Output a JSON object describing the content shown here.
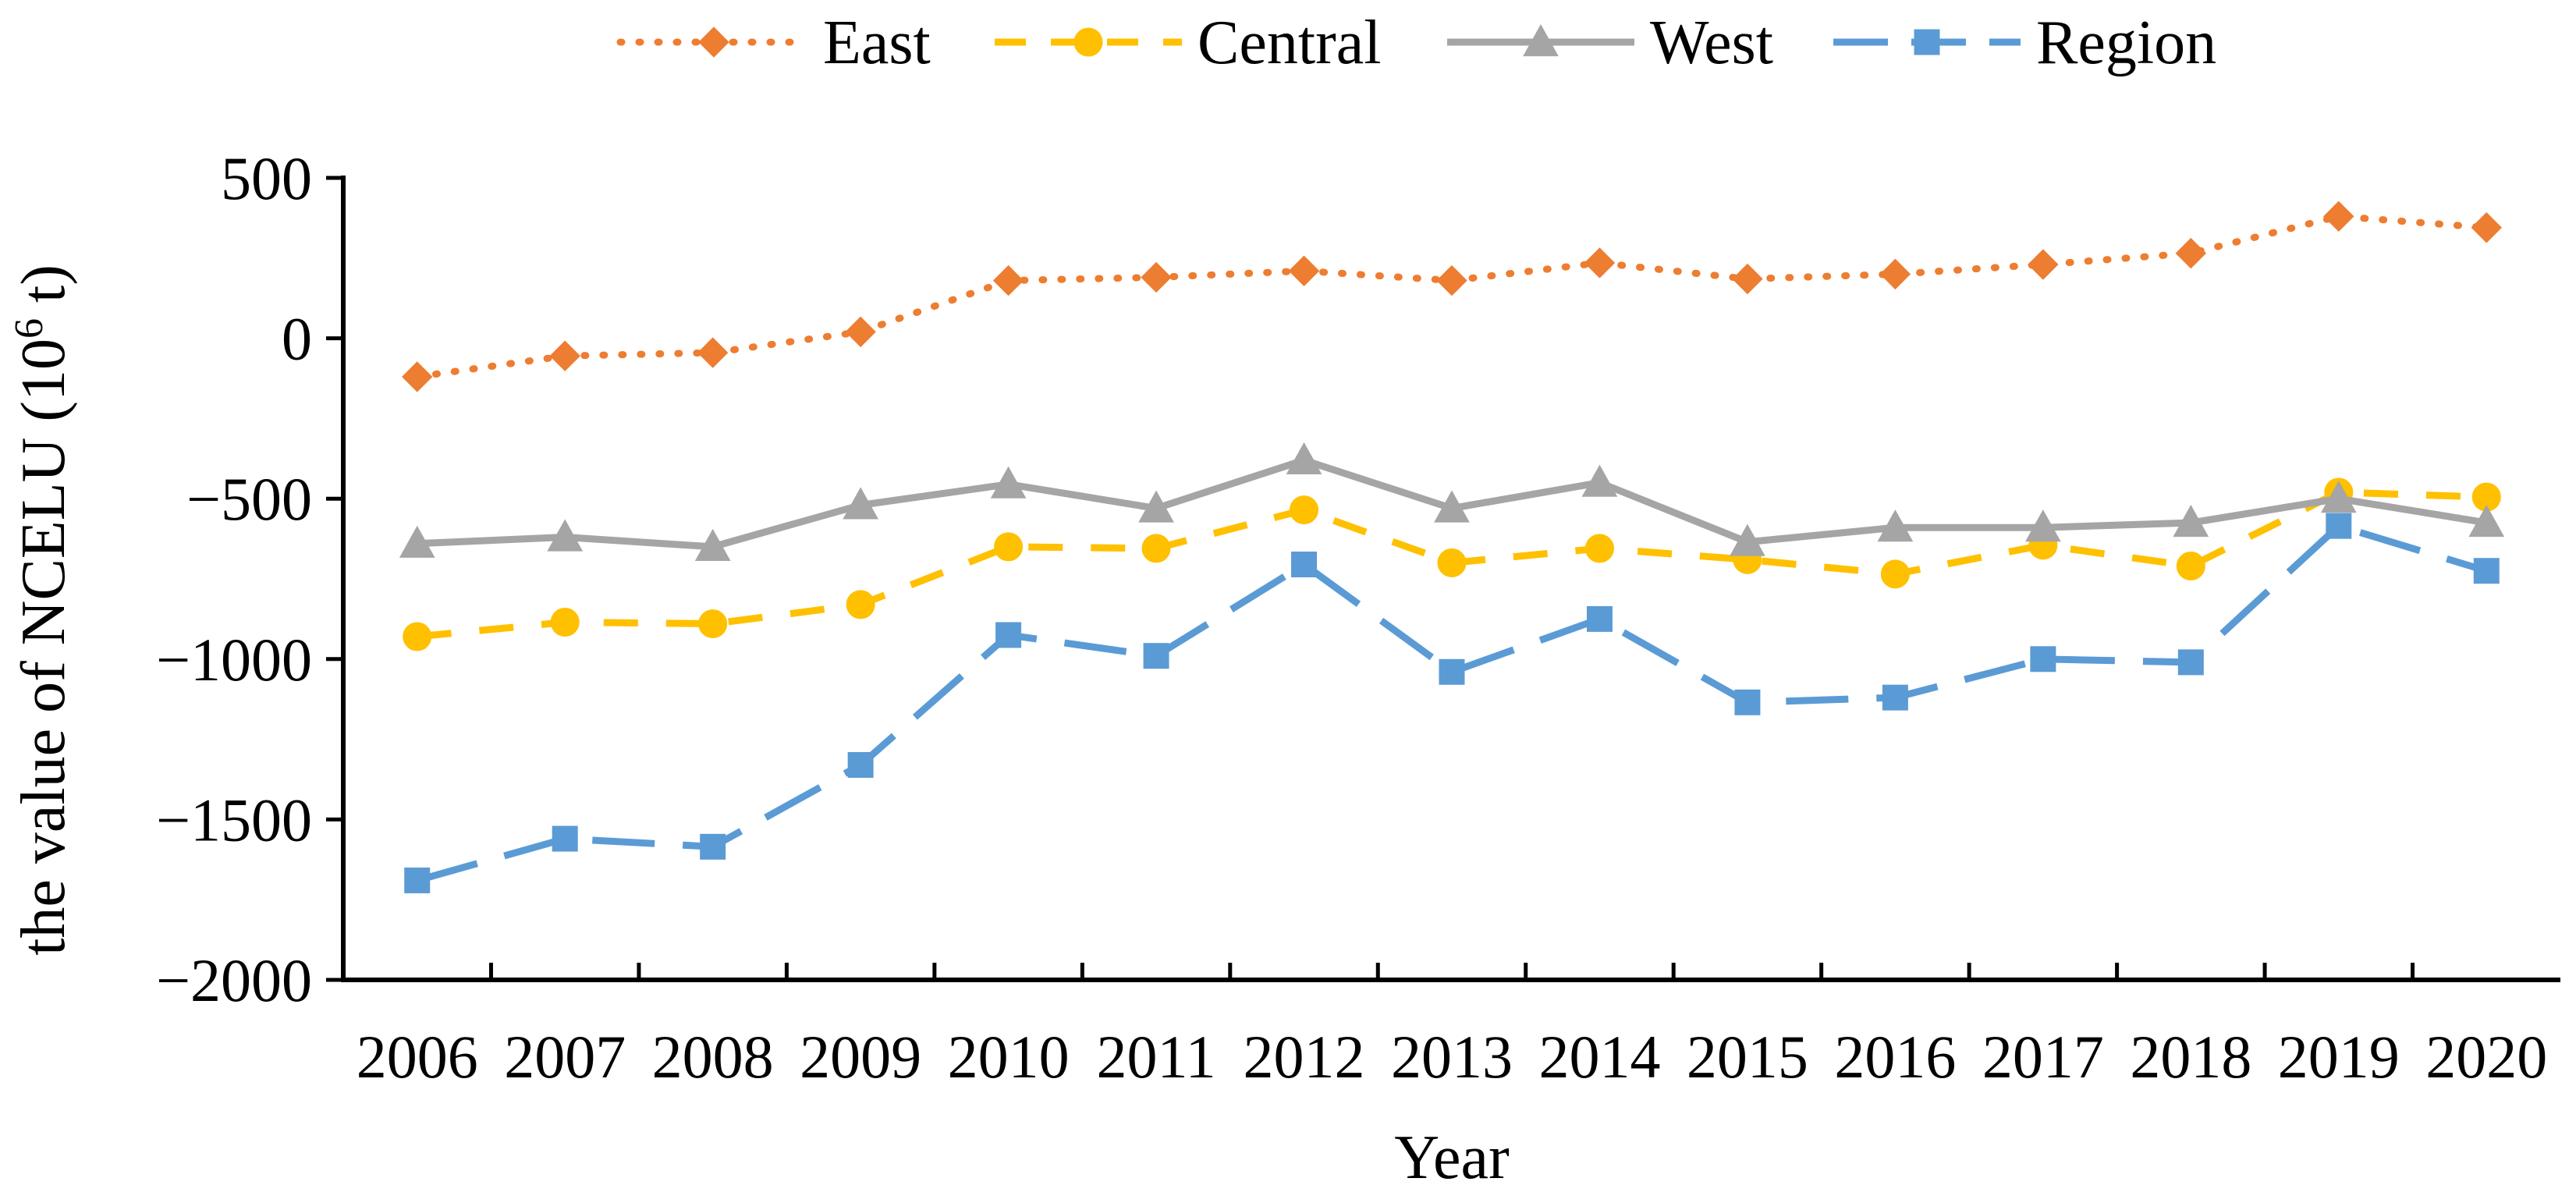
{
  "chart_data": {
    "type": "line",
    "title": "",
    "xlabel": "Year",
    "ylabel": "the value of NCELU (10",
    "ylabel_superscript": "6",
    "ylabel_suffix": " t)",
    "x": [
      "2006",
      "2007",
      "2008",
      "2009",
      "2010",
      "2011",
      "2012",
      "2013",
      "2014",
      "2015",
      "2016",
      "2017",
      "2018",
      "2019",
      "2020"
    ],
    "ylim": [
      -2000,
      500
    ],
    "yticks": [
      500,
      0,
      -500,
      -1000,
      -1500,
      -2000
    ],
    "ytick_labels": [
      "500",
      "0",
      "−500",
      "−1000",
      "−1500",
      "−2000"
    ],
    "legend_position": "top-center",
    "series": [
      {
        "name": "East",
        "color": "#ED7D31",
        "line_style": "dotted",
        "marker": "diamond",
        "values": [
          -120,
          -55,
          -45,
          20,
          180,
          190,
          210,
          180,
          235,
          185,
          200,
          230,
          265,
          380,
          345
        ]
      },
      {
        "name": "Central",
        "color": "#FFC000",
        "line_style": "dashed",
        "marker": "circle",
        "values": [
          -930,
          -885,
          -890,
          -830,
          -650,
          -655,
          -535,
          -700,
          -655,
          -690,
          -735,
          -645,
          -710,
          -480,
          -495
        ]
      },
      {
        "name": "West",
        "color": "#A5A5A5",
        "line_style": "solid",
        "marker": "triangle",
        "values": [
          -640,
          -620,
          -650,
          -520,
          -455,
          -530,
          -380,
          -530,
          -450,
          -635,
          -590,
          -590,
          -575,
          -500,
          -575
        ]
      },
      {
        "name": "Region",
        "color": "#5B9BD5",
        "line_style": "long-dash",
        "marker": "square",
        "values": [
          -1690,
          -1560,
          -1585,
          -1330,
          -925,
          -990,
          -705,
          -1040,
          -875,
          -1135,
          -1120,
          -1000,
          -1010,
          -585,
          -725
        ]
      }
    ]
  }
}
